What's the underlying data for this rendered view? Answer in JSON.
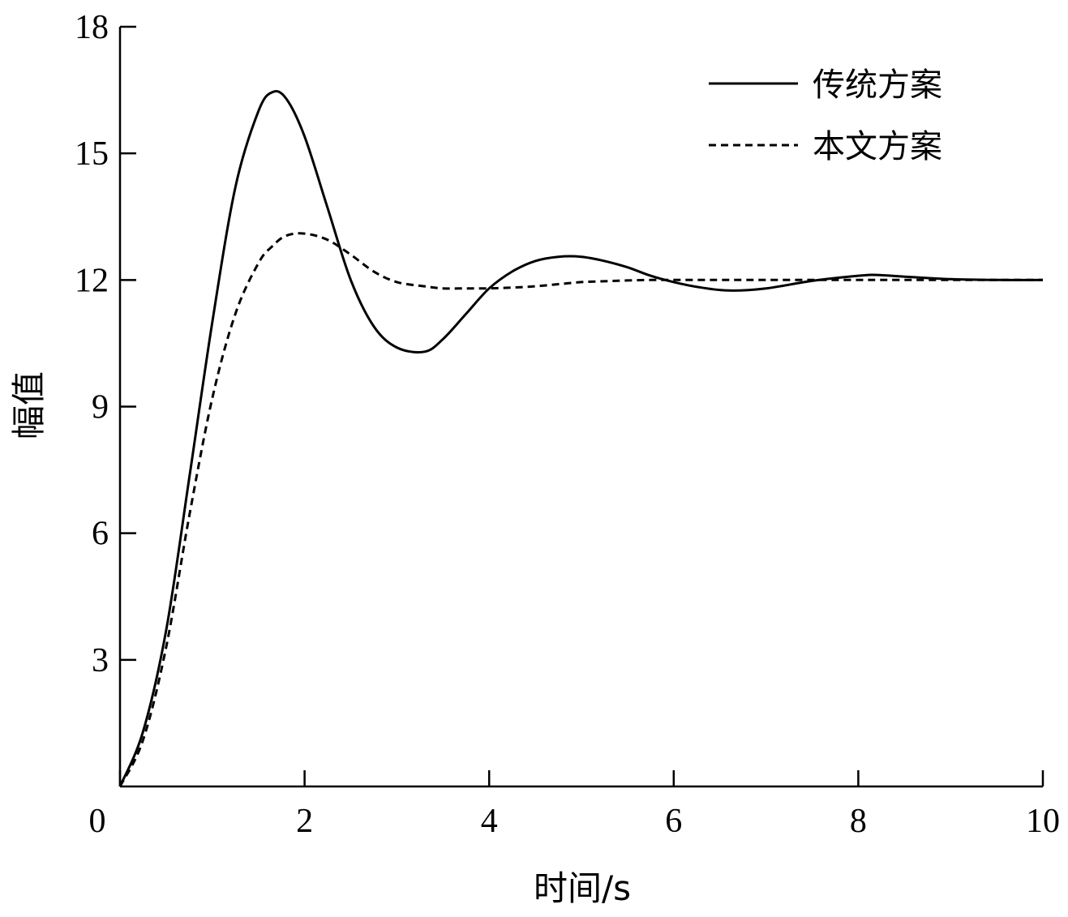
{
  "chart_data": {
    "type": "line",
    "title": "",
    "xlabel": "时间/s",
    "ylabel": "幅值",
    "xlim": [
      0,
      10
    ],
    "ylim": [
      0,
      18
    ],
    "xticks": [
      0,
      2,
      4,
      6,
      8,
      10
    ],
    "xtick_labels": [
      "0",
      "2",
      "4",
      "6",
      "8",
      "10"
    ],
    "yticks": [
      3,
      6,
      9,
      12,
      15,
      18
    ],
    "ytick_labels": [
      "3",
      "6",
      "9",
      "12",
      "15",
      "18"
    ],
    "grid": false,
    "legend_position": "top-right",
    "x": [
      0,
      0.25,
      0.5,
      0.75,
      1.0,
      1.25,
      1.5,
      1.65,
      1.8,
      2.0,
      2.25,
      2.5,
      2.75,
      3.0,
      3.3,
      3.5,
      3.75,
      4.0,
      4.25,
      4.5,
      4.75,
      5.0,
      5.25,
      5.5,
      5.75,
      6.0,
      6.3,
      6.6,
      7.0,
      7.5,
      8.0,
      8.2,
      8.5,
      9.0,
      9.5,
      10.0
    ],
    "series": [
      {
        "name": "传统方案",
        "style": "solid",
        "color": "#000000",
        "values": [
          0,
          1.3,
          3.7,
          7.3,
          11.0,
          14.2,
          16.0,
          16.45,
          16.3,
          15.4,
          13.7,
          12.0,
          10.9,
          10.4,
          10.3,
          10.6,
          11.2,
          11.8,
          12.2,
          12.45,
          12.55,
          12.55,
          12.45,
          12.3,
          12.1,
          11.95,
          11.82,
          11.75,
          11.8,
          11.98,
          12.1,
          12.12,
          12.08,
          12.02,
          12.0,
          12.0
        ]
      },
      {
        "name": "本文方案",
        "style": "dashed",
        "color": "#000000",
        "values": [
          0,
          1.1,
          3.3,
          6.4,
          9.2,
          11.2,
          12.4,
          12.8,
          13.05,
          13.1,
          12.95,
          12.6,
          12.2,
          11.95,
          11.85,
          11.8,
          11.8,
          11.8,
          11.82,
          11.85,
          11.9,
          11.95,
          11.97,
          11.99,
          12.0,
          12.0,
          12.0,
          12.0,
          12.0,
          12.0,
          12.0,
          12.0,
          12.0,
          12.0,
          12.0,
          12.0
        ]
      }
    ]
  }
}
